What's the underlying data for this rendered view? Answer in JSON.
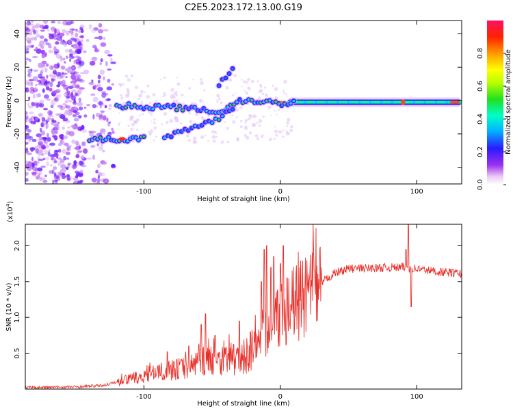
{
  "title": "C2E5.2023.172.13.00.G19",
  "colors": {
    "snr_line": "#e8302a",
    "axis": "#000000"
  },
  "chart_data": [
    {
      "type": "heatmap",
      "xlabel": "Height of straight line (km)",
      "ylabel": "Frequency (Hz)",
      "xlim": [
        -187,
        133
      ],
      "ylim": [
        -50,
        48
      ],
      "x_ticks": [
        -100,
        0,
        100
      ],
      "x_tick_labels": [
        "-100",
        "0",
        "100"
      ],
      "y_ticks": [
        -40,
        -20,
        0,
        20,
        40
      ],
      "y_tick_labels": [
        "-40",
        "-20",
        "0",
        "20",
        "40"
      ],
      "colorbar": {
        "label": "Normalized spectral amplitude",
        "range": [
          0,
          1
        ],
        "ticks": [
          0.0,
          0.2,
          0.4,
          0.6,
          0.8
        ],
        "tick_labels": [
          "0.0",
          "0.2",
          "0.4",
          "0.6",
          "0.8"
        ]
      },
      "features": [
        {
          "name": "main-trace",
          "points": [
            [
              -120,
              -3
            ],
            [
              -80,
              -4
            ],
            [
              -60,
              -5
            ],
            [
              -45,
              -7
            ],
            [
              -30,
              0
            ],
            [
              -15,
              0
            ],
            [
              0,
              -2
            ],
            [
              10,
              -1
            ],
            [
              50,
              -1
            ],
            [
              90,
              -1
            ],
            [
              133,
              0
            ]
          ]
        },
        {
          "name": "lower-branch",
          "points": [
            [
              -140,
              -23
            ],
            [
              -120,
              -23
            ],
            [
              -100,
              -23
            ]
          ]
        },
        {
          "name": "lower-diagonal",
          "points": [
            [
              -85,
              -22
            ],
            [
              -60,
              -16
            ],
            [
              -45,
              -10
            ],
            [
              -35,
              -5
            ]
          ]
        },
        {
          "name": "upper-branch",
          "points": [
            [
              -45,
              10
            ],
            [
              -40,
              15
            ],
            [
              -35,
              19
            ]
          ]
        }
      ],
      "grid": false
    },
    {
      "type": "line",
      "xlabel": "Height of straight line (km)",
      "ylabel": "SNR (10 * v/v)",
      "y_multiplier_label": "(x10",
      "y_multiplier_exp": "4",
      "y_multiplier_close": ")",
      "xlim": [
        -187,
        133
      ],
      "ylim": [
        0,
        2.3
      ],
      "x_ticks": [
        -100,
        0,
        100
      ],
      "x_tick_labels": [
        "-100",
        "0",
        "100"
      ],
      "y_ticks": [
        0.5,
        1.0,
        1.5,
        2.0
      ],
      "y_tick_labels": [
        "0.5",
        "1.0",
        "1.5",
        "2.0"
      ],
      "series": [
        {
          "envelope": [
            [
              -187,
              0.02
            ],
            [
              -150,
              0.03
            ],
            [
              -130,
              0.05
            ],
            [
              -115,
              0.12
            ],
            [
              -100,
              0.18
            ],
            [
              -85,
              0.25
            ],
            [
              -70,
              0.3
            ],
            [
              -55,
              0.4
            ],
            [
              -40,
              0.42
            ],
            [
              -30,
              0.4
            ],
            [
              -20,
              0.55
            ],
            [
              -15,
              0.75
            ],
            [
              -10,
              0.8
            ],
            [
              -5,
              0.95
            ],
            [
              0,
              1.05
            ],
            [
              10,
              1.18
            ],
            [
              20,
              1.3
            ],
            [
              30,
              1.48
            ],
            [
              40,
              1.62
            ],
            [
              50,
              1.68
            ],
            [
              70,
              1.69
            ],
            [
              90,
              1.7
            ],
            [
              100,
              1.68
            ],
            [
              115,
              1.64
            ],
            [
              133,
              1.61
            ]
          ],
          "spikes": [
            [
              -83,
              0.52
            ],
            [
              -67,
              0.6
            ],
            [
              -58,
              0.9
            ],
            [
              -55,
              1.05
            ],
            [
              -48,
              0.75
            ],
            [
              -40,
              0.58
            ],
            [
              -30,
              0.95
            ],
            [
              -22,
              0.8
            ],
            [
              -14,
              1.5
            ],
            [
              -12,
              1.95
            ],
            [
              -10,
              2.0
            ],
            [
              -7,
              1.7
            ],
            [
              -5,
              1.85
            ],
            [
              0,
              1.75
            ],
            [
              2,
              2.0
            ],
            [
              5,
              1.55
            ],
            [
              94,
              2.3
            ],
            [
              96,
              1.15
            ],
            [
              92,
              1.95
            ]
          ]
        }
      ],
      "grid": false
    }
  ]
}
